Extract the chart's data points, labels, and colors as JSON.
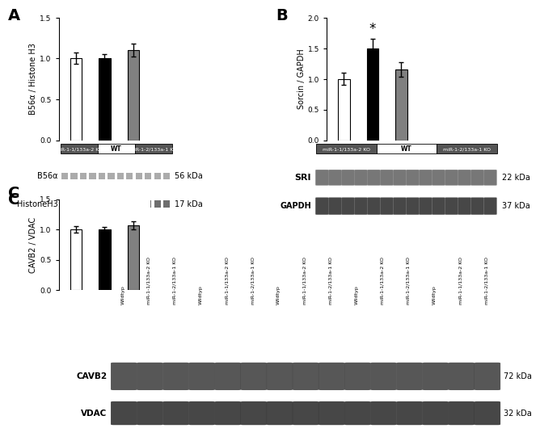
{
  "panel_A": {
    "bars": [
      1.0,
      1.0,
      1.1
    ],
    "errors": [
      0.07,
      0.05,
      0.08
    ],
    "colors": [
      "white",
      "black",
      "#808080"
    ],
    "ylabel": "B56α / Histone H3",
    "ylim": [
      0,
      1.5
    ],
    "yticks": [
      0.0,
      0.5,
      1.0,
      1.5
    ],
    "label": "A",
    "wb_labels_left": [
      "B56α",
      "HistoneH3"
    ],
    "wb_labels_right": [
      "56 kDa",
      "17 kDa"
    ],
    "wb_style": "dashed",
    "n_bands": 12,
    "group_label_left": "miR-1-1/133a-2 KO",
    "group_label_mid": "WT",
    "group_label_right": "miR-1-2/133a-1 KO"
  },
  "panel_B": {
    "bars": [
      1.0,
      1.5,
      1.15
    ],
    "errors": [
      0.1,
      0.15,
      0.12
    ],
    "colors": [
      "white",
      "black",
      "#808080"
    ],
    "ylabel": "Sorcin / GAPDH",
    "ylim": [
      0,
      2.0
    ],
    "yticks": [
      0.0,
      0.5,
      1.0,
      1.5,
      2.0
    ],
    "label": "B",
    "star_bar": 1,
    "wb_labels_left": [
      "SRI",
      "GAPDH"
    ],
    "wb_labels_right": [
      "22 kDa",
      "37 kDa"
    ],
    "wb_style": "blob",
    "n_bands": 14,
    "group_label_left": "miR-1-1/133a-2 KO",
    "group_label_mid": "WT",
    "group_label_right": "miR-1-2/133a-1 KO"
  },
  "panel_C": {
    "bars": [
      1.0,
      1.0,
      1.07
    ],
    "errors": [
      0.05,
      0.04,
      0.07
    ],
    "colors": [
      "white",
      "black",
      "#808080"
    ],
    "ylabel": "CAVB2 / VDAC",
    "ylim": [
      0,
      1.5
    ],
    "yticks": [
      0.0,
      0.5,
      1.0,
      1.5
    ],
    "label": "C",
    "wb_labels_left": [
      "CAVB2",
      "VDAC"
    ],
    "wb_labels_right": [
      "72 kDa",
      "32 kDa"
    ],
    "wb_style": "blob",
    "n_bands": 15,
    "col_labels": [
      "Wildtyp",
      "miR-1-1/133a-2 KO",
      "miR-1-2/133a-1 KO",
      "Wildtyp",
      "miR-1-1/133a-2 KO",
      "miR-1-2/133a-1 KO",
      "Wildtyp",
      "miR-1-1/133a-2 KO",
      "miR-1-2/133a-1 KO",
      "Wildtyp",
      "miR-1-1/133a-2 KO",
      "miR-1-2/133a-1 KO",
      "Wildtyp",
      "miR-1-1/133a-2 KO",
      "miR-1-2/133a-1 KO"
    ]
  },
  "bg_color": "#ffffff"
}
